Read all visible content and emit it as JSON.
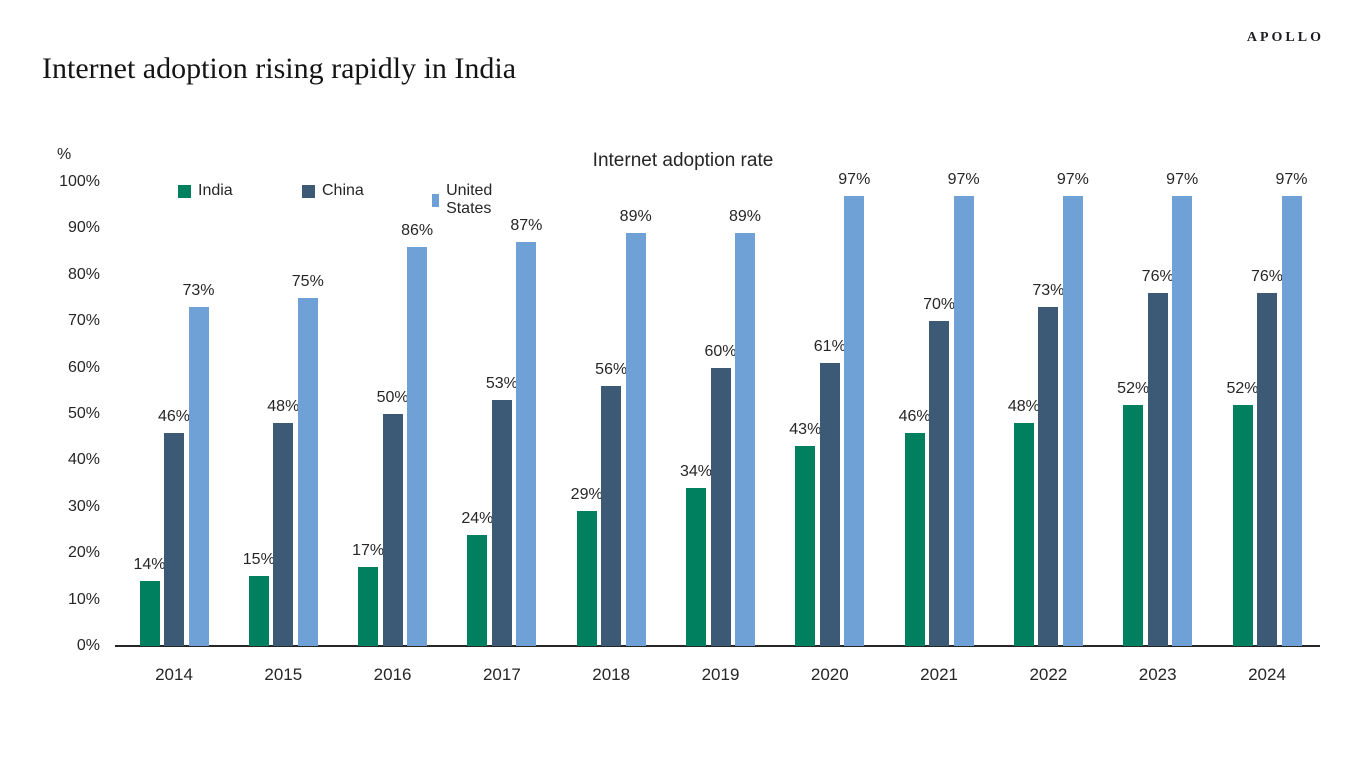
{
  "header": {
    "logo": "APOLLO",
    "title": "Internet adoption rising rapidly in India"
  },
  "chart_data": {
    "type": "bar",
    "title": "Internet adoption rate",
    "xlabel": "",
    "ylabel": "%",
    "ylim": [
      0,
      100
    ],
    "grid": false,
    "legend_position": "top-left",
    "data_label_format": "{value}%",
    "y_ticks": [
      "0%",
      "10%",
      "20%",
      "30%",
      "40%",
      "50%",
      "60%",
      "70%",
      "80%",
      "90%",
      "100%"
    ],
    "categories": [
      "2014",
      "2015",
      "2016",
      "2017",
      "2018",
      "2019",
      "2020",
      "2021",
      "2022",
      "2023",
      "2024"
    ],
    "series": [
      {
        "name": "India",
        "color": "#00805E",
        "values": [
          14,
          15,
          17,
          24,
          29,
          34,
          43,
          46,
          48,
          52,
          52
        ]
      },
      {
        "name": "China",
        "color": "#3C5A76",
        "values": [
          46,
          48,
          50,
          53,
          56,
          60,
          61,
          70,
          73,
          76,
          76
        ]
      },
      {
        "name": "United States",
        "color": "#6FA0D6",
        "values": [
          73,
          75,
          86,
          87,
          89,
          89,
          97,
          97,
          97,
          97,
          97
        ]
      }
    ],
    "colors": {
      "axis": "#262626",
      "text": "#262626"
    }
  }
}
